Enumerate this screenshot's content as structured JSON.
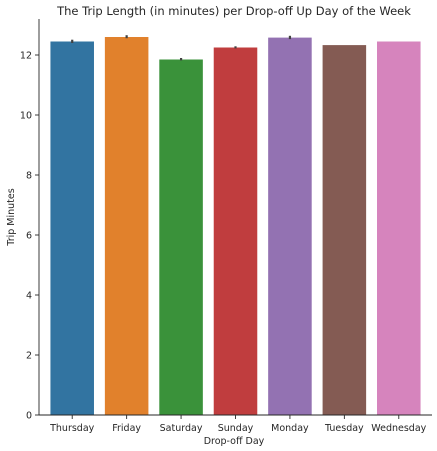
{
  "chart_data": {
    "type": "bar",
    "title": "The Trip Length (in minutes) per Drop-off Up Day of the Week",
    "xlabel": "Drop-off Day",
    "ylabel": "Trip Minutes",
    "categories": [
      "Thursday",
      "Friday",
      "Saturday",
      "Sunday",
      "Monday",
      "Tuesday",
      "Wednesday"
    ],
    "values": [
      12.45,
      12.6,
      11.85,
      12.25,
      12.58,
      12.33,
      12.45
    ],
    "error_bars": [
      {
        "low": 12.4,
        "high": 12.51
      },
      {
        "low": 12.56,
        "high": 12.66
      },
      {
        "low": 11.82,
        "high": 11.9
      },
      {
        "low": 12.22,
        "high": 12.29
      },
      {
        "low": 12.53,
        "high": 12.64
      },
      null,
      null
    ],
    "colors": [
      "#3274a1",
      "#e1812c",
      "#3a923a",
      "#c03d3e",
      "#9372b2",
      "#845b53",
      "#d684bd"
    ],
    "ylim": [
      0,
      13.2
    ],
    "yticks": [
      0,
      2,
      4,
      6,
      8,
      10,
      12
    ],
    "grid": false,
    "legend": "none"
  }
}
